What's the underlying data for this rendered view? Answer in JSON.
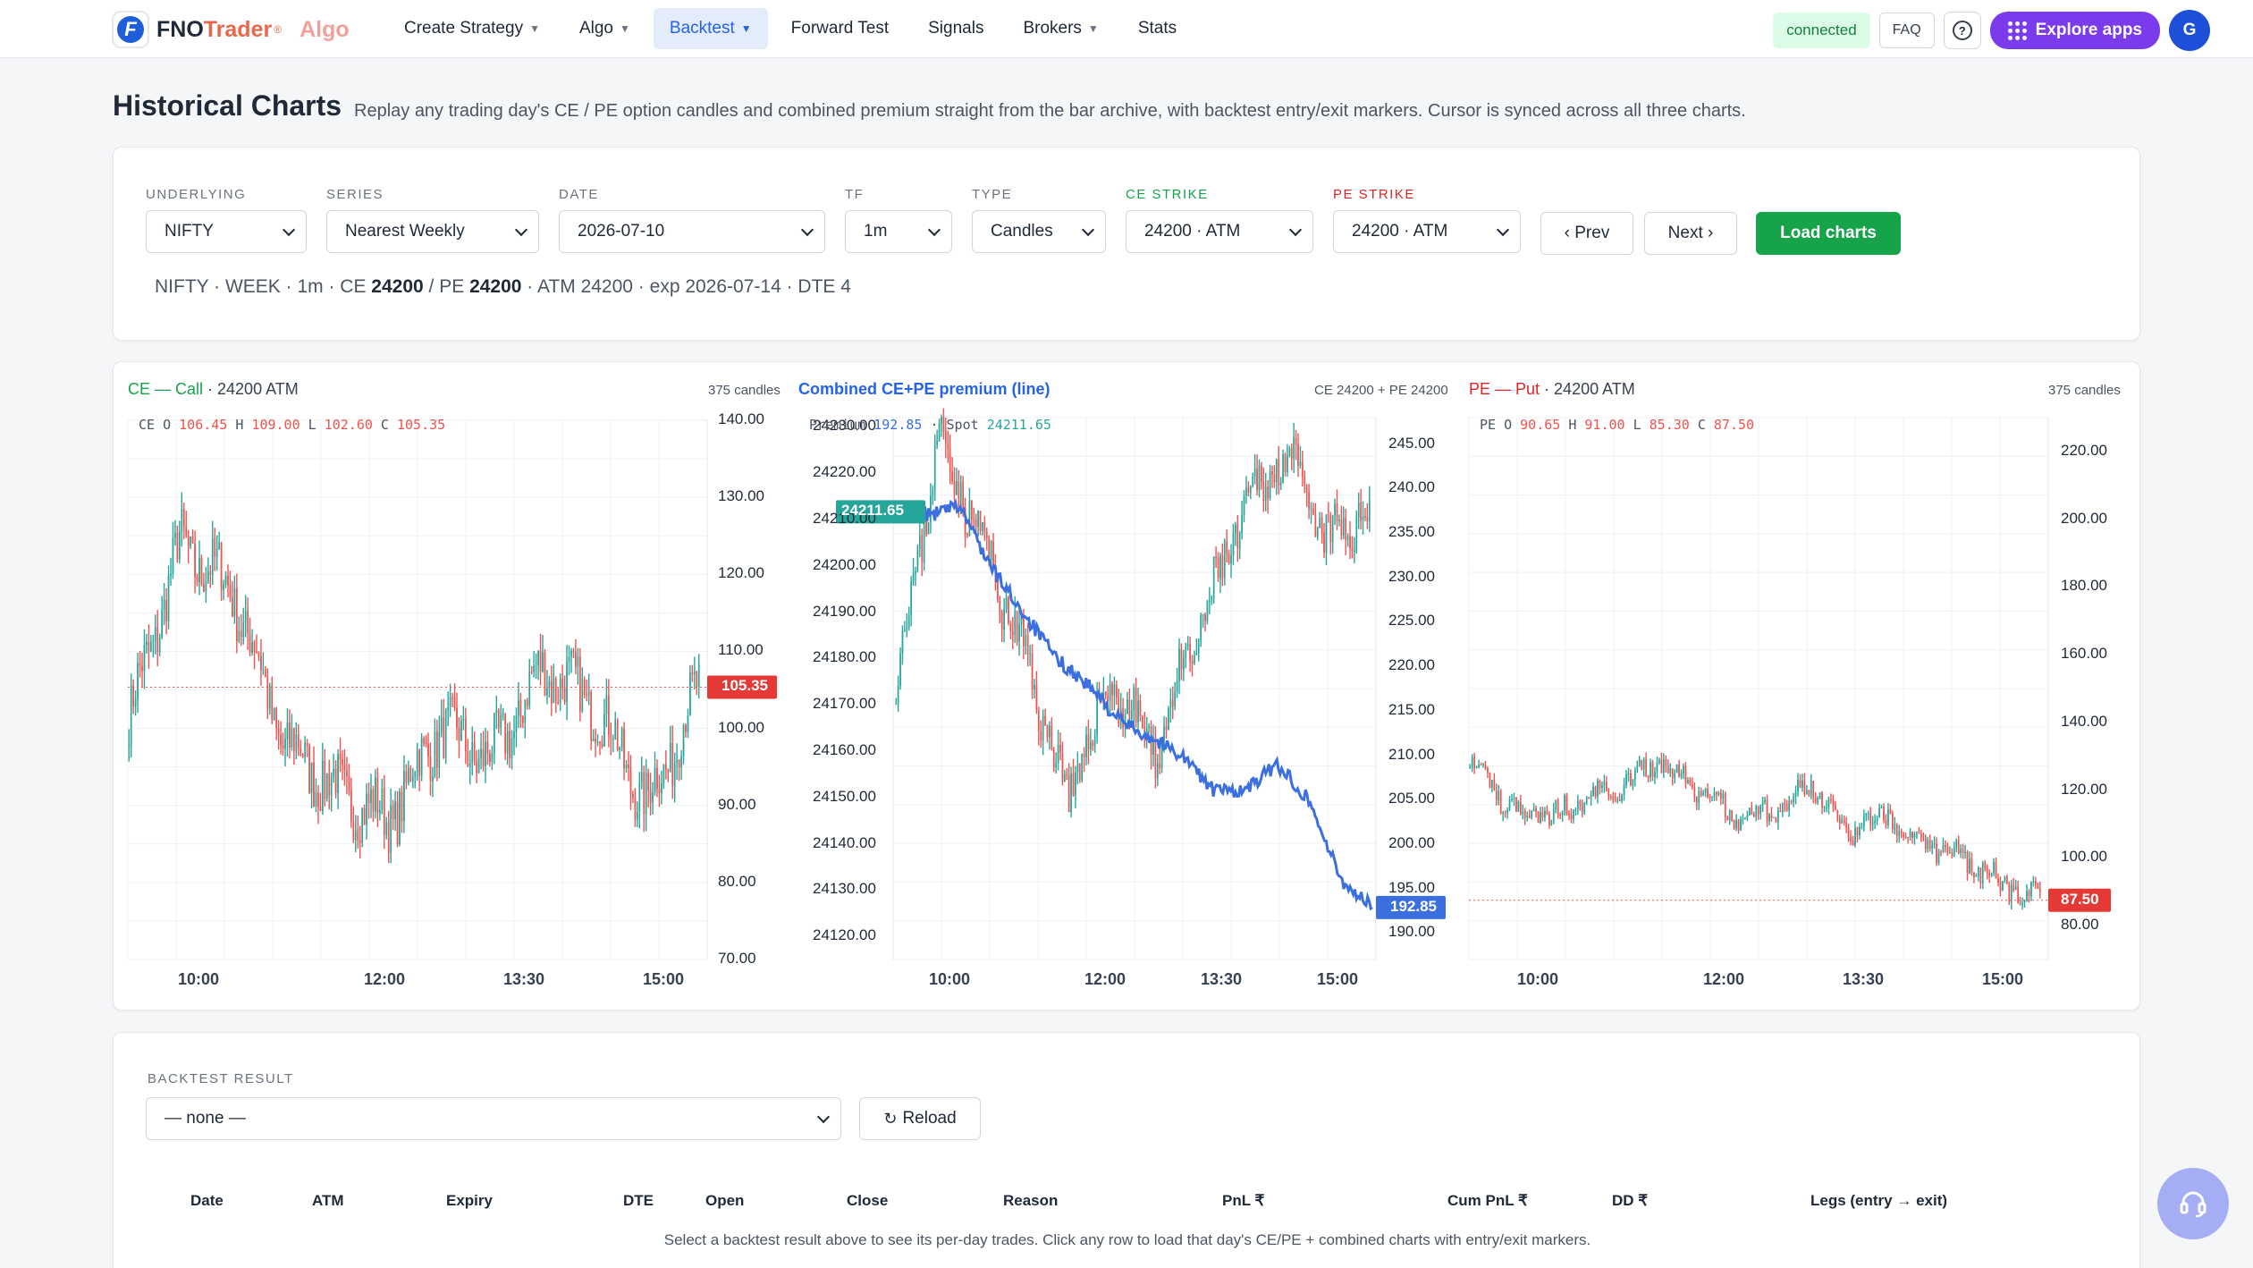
{
  "brand": {
    "fno": "FNO",
    "trader": "Trader",
    "reg": "®",
    "algo": "Algo",
    "logo_letter": "F"
  },
  "nav": [
    {
      "label": "Create Strategy",
      "caret": true,
      "active": false
    },
    {
      "label": "Algo",
      "caret": true,
      "active": false
    },
    {
      "label": "Backtest",
      "caret": true,
      "active": true
    },
    {
      "label": "Forward Test",
      "caret": false,
      "active": false
    },
    {
      "label": "Signals",
      "caret": false,
      "active": false
    },
    {
      "label": "Brokers",
      "caret": true,
      "active": false
    },
    {
      "label": "Stats",
      "caret": false,
      "active": false
    }
  ],
  "topbar": {
    "status": "connected",
    "faq": "FAQ",
    "help": "?",
    "explore": "Explore apps",
    "avatar": "G"
  },
  "page": {
    "title": "Historical Charts",
    "subtitle": "Replay any trading day's CE / PE option candles and combined premium straight from the bar archive, with backtest entry/exit markers. Cursor is synced across all three charts."
  },
  "controls": {
    "underlying": {
      "label": "UNDERLYING",
      "value": "NIFTY"
    },
    "series": {
      "label": "SERIES",
      "value": "Nearest Weekly"
    },
    "date": {
      "label": "DATE",
      "value": "2026-07-10"
    },
    "tf": {
      "label": "TF",
      "value": "1m"
    },
    "type": {
      "label": "TYPE",
      "value": "Candles"
    },
    "ce_strike": {
      "label": "CE STRIKE",
      "value": "24200 · ATM"
    },
    "pe_strike": {
      "label": "PE STRIKE",
      "value": "24200 · ATM"
    },
    "prev": "‹ Prev",
    "next": "Next ›",
    "load": "Load charts"
  },
  "summary": {
    "prefix": "NIFTY · WEEK · 1m · CE ",
    "ce": "24200",
    "mid": " / PE ",
    "pe": "24200",
    "suffix": " · ATM 24200 · exp 2026-07-14 · DTE 4"
  },
  "chart_data": [
    {
      "type": "candlestick",
      "title": "CE — Call",
      "subtitle": "· 24200 ATM",
      "count": "375 candles",
      "ohlc": {
        "label": "CE",
        "o": "106.45",
        "h": "109.00",
        "l": "102.60",
        "c": "105.35"
      },
      "last": "105.35",
      "ylim": [
        70,
        140
      ],
      "yticks": [
        "140.00",
        "130.00",
        "120.00",
        "110.00",
        "100.00",
        "90.00",
        "80.00",
        "70.00"
      ],
      "xticks": [
        "10:00",
        "12:00",
        "13:30",
        "15:00"
      ],
      "colors": {
        "up": "#26a69a",
        "down": "#ef5350",
        "last": "#e53935"
      }
    },
    {
      "type": "line+candlestick",
      "title": "Combined CE+PE premium (line)",
      "count": "CE 24200 + PE 24200",
      "premium_label": "Premium",
      "premium": "192.85",
      "spot_label": "Spot",
      "spot": "24211.65",
      "left_ylim": [
        24115,
        24232
      ],
      "left_yticks": [
        "24230.00",
        "24220.00",
        "24210.00",
        "24200.00",
        "24190.00",
        "24180.00",
        "24170.00",
        "24160.00",
        "24150.00",
        "24140.00",
        "24130.00",
        "24120.00"
      ],
      "right_ylim": [
        187,
        248
      ],
      "right_yticks": [
        "245.00",
        "240.00",
        "235.00",
        "230.00",
        "225.00",
        "220.00",
        "215.00",
        "210.00",
        "205.00",
        "200.00",
        "195.00",
        "190.00"
      ],
      "xticks": [
        "10:00",
        "12:00",
        "13:30",
        "15:00"
      ],
      "colors": {
        "line": "#3b6fe0",
        "spot_badge": "#26a69a"
      }
    },
    {
      "type": "candlestick",
      "title": "PE — Put",
      "subtitle": "· 24200 ATM",
      "count": "375 candles",
      "ohlc": {
        "label": "PE",
        "o": "90.65",
        "h": "91.00",
        "l": "85.30",
        "c": "87.50"
      },
      "last": "87.50",
      "ylim": [
        70,
        230
      ],
      "yticks": [
        "220.00",
        "200.00",
        "180.00",
        "160.00",
        "140.00",
        "120.00",
        "100.00",
        "80.00"
      ],
      "xticks": [
        "10:00",
        "12:00",
        "13:30",
        "15:00"
      ],
      "colors": {
        "up": "#26a69a",
        "down": "#ef5350",
        "last": "#e53935"
      }
    }
  ],
  "results": {
    "label": "BACKTEST RESULT",
    "selected": "— none —",
    "reload": "Reload",
    "columns": [
      "Date",
      "ATM",
      "Expiry",
      "DTE",
      "Open",
      "Close",
      "Reason",
      "PnL ₹",
      "Cum PnL ₹",
      "DD ₹",
      "Legs (entry → exit)"
    ],
    "empty": "Select a backtest result above to see its per-day trades. Click any row to load that day's CE/PE + combined charts with entry/exit markers."
  }
}
